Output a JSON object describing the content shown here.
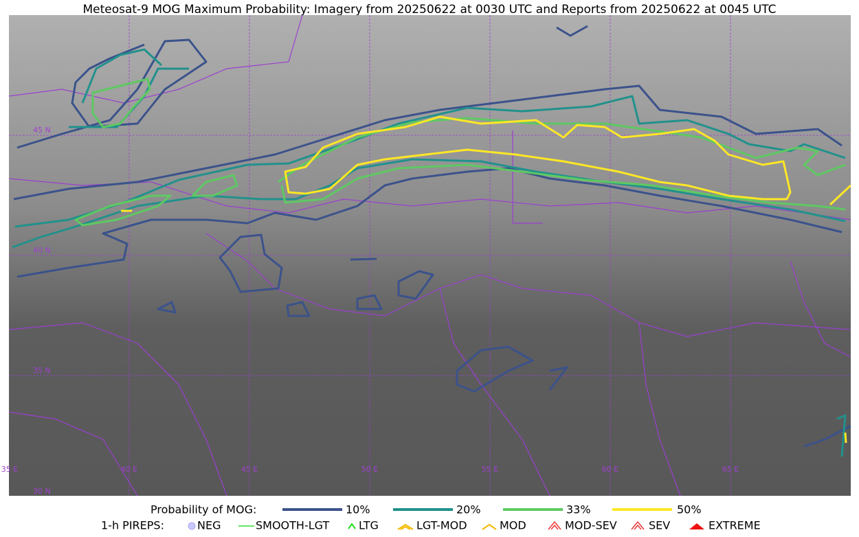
{
  "header": {
    "title": "Meteosat-9 MOG Maximum Probability: Imagery from 20250622 at 0030 UTC and Reports from 20250622 at 0045 UTC"
  },
  "map": {
    "lat_labels": [
      "45 N",
      "40 N",
      "35 N",
      "30 N"
    ],
    "lon_labels": [
      "35 E",
      "40 E",
      "45 E",
      "50 E",
      "55 E",
      "60 E",
      "65 E"
    ]
  },
  "legend": {
    "probability": {
      "label": "Probability of MOG:",
      "levels": [
        "10%",
        "20%",
        "33%",
        "50%"
      ]
    },
    "pireps": {
      "label": "1-h PIREPS:",
      "items": [
        "NEG",
        "SMOOTH-LGT",
        "LTG",
        "LGT-MOD",
        "MOD",
        "MOD-SEV",
        "SEV",
        "EXTREME"
      ]
    }
  }
}
